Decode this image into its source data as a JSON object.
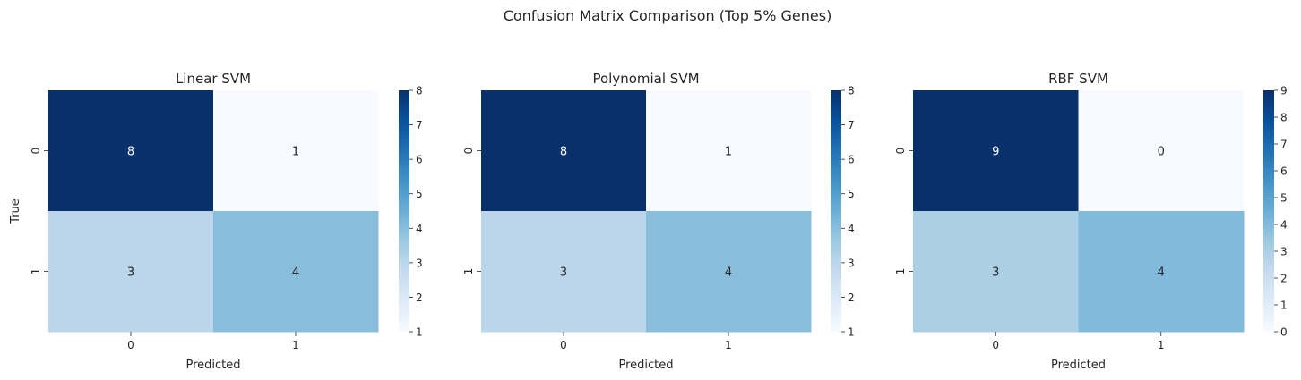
{
  "suptitle": "Confusion Matrix Comparison (Top 5% Genes)",
  "colormap": {
    "name": "Blues",
    "stops": [
      "#f7fbff",
      "#deebf7",
      "#c6dbef",
      "#9ecae1",
      "#6baed6",
      "#4292c6",
      "#2171b5",
      "#08519c",
      "#08306b"
    ]
  },
  "text_colors": {
    "dark": "#262626",
    "light": "#ffffff"
  },
  "chart_data": [
    {
      "type": "heatmap",
      "title": "Linear SVM",
      "xlabel": "Predicted",
      "ylabel": "True",
      "x_ticks": [
        "0",
        "1"
      ],
      "y_ticks": [
        "0",
        "1"
      ],
      "values": [
        [
          8,
          1
        ],
        [
          3,
          4
        ]
      ],
      "colorbar": {
        "range": [
          1,
          8
        ],
        "ticks": [
          1,
          2,
          3,
          4,
          5,
          6,
          7,
          8
        ]
      }
    },
    {
      "type": "heatmap",
      "title": "Polynomial SVM",
      "xlabel": "Predicted",
      "ylabel": "",
      "x_ticks": [
        "0",
        "1"
      ],
      "y_ticks": [
        "0",
        "1"
      ],
      "values": [
        [
          8,
          1
        ],
        [
          3,
          4
        ]
      ],
      "colorbar": {
        "range": [
          1,
          8
        ],
        "ticks": [
          1,
          2,
          3,
          4,
          5,
          6,
          7,
          8
        ]
      }
    },
    {
      "type": "heatmap",
      "title": "RBF SVM",
      "xlabel": "Predicted",
      "ylabel": "",
      "x_ticks": [
        "0",
        "1"
      ],
      "y_ticks": [
        "0",
        "1"
      ],
      "values": [
        [
          9,
          0
        ],
        [
          3,
          4
        ]
      ],
      "colorbar": {
        "range": [
          0,
          9
        ],
        "ticks": [
          0,
          1,
          2,
          3,
          4,
          5,
          6,
          7,
          8,
          9
        ]
      }
    }
  ]
}
